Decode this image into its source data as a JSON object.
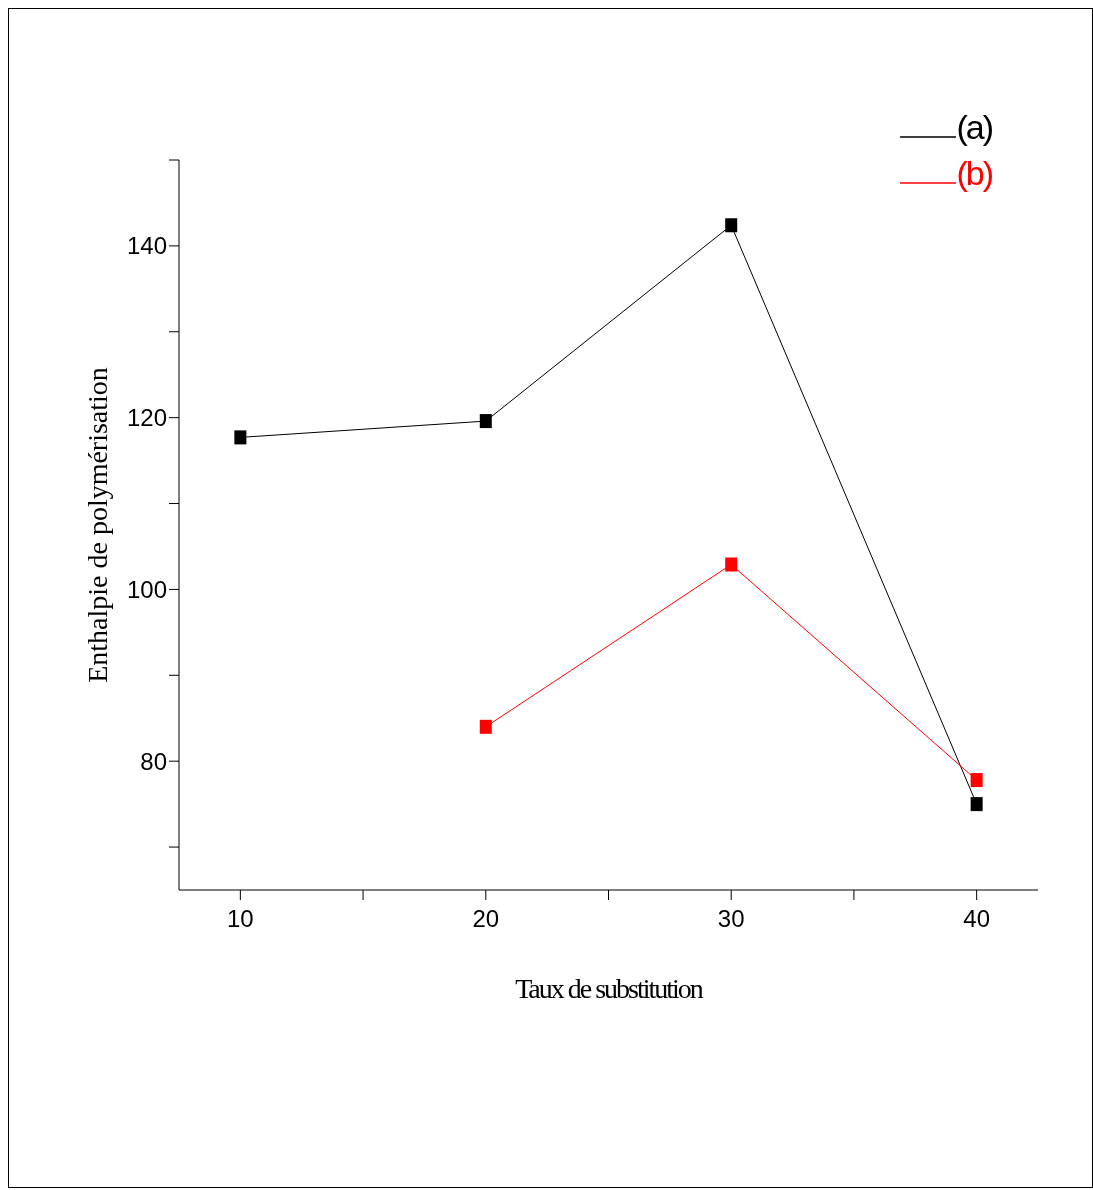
{
  "chart_data": {
    "type": "line",
    "xlabel": "Taux de substitution",
    "ylabel": "Enthalpie de polymérisation",
    "x": [
      10,
      20,
      30,
      40
    ],
    "series": [
      {
        "name": "(a)",
        "color": "#000000",
        "values": [
          117.7,
          119.6,
          142.4,
          75.0
        ]
      },
      {
        "name": "(b)",
        "color": "#ff0000",
        "values": [
          null,
          84.0,
          102.9,
          77.8
        ]
      }
    ],
    "xlim": [
      7.5,
      42.5
    ],
    "xticks": [
      10,
      {
        "value": 15,
        "label": null
      },
      20,
      {
        "value": 25,
        "label": null
      },
      30,
      {
        "value": 35,
        "label": null
      },
      40
    ],
    "ylim": [
      65,
      150
    ],
    "yticks": [
      {
        "value": 70,
        "label": null
      },
      80,
      {
        "value": 90,
        "label": null
      },
      100,
      {
        "value": 110,
        "label": null
      },
      120,
      {
        "value": 130,
        "label": null
      },
      140,
      {
        "value": 150,
        "label": null
      }
    ],
    "marker": "square",
    "legend": "top right",
    "grid": false
  }
}
